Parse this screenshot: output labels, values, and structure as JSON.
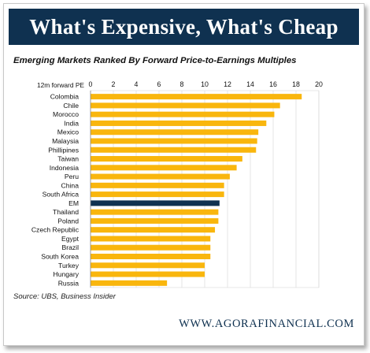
{
  "banner": {
    "title": "What's Expensive, What's Cheap"
  },
  "footer": {
    "site": "WWW.AGORAFINANCIAL.COM",
    "source": "Source: UBS, Business Insider"
  },
  "colors": {
    "banner": "#0f3150",
    "bar": "#f9b60d",
    "highlight_bar": "#0f3150"
  },
  "chart_data": {
    "type": "bar",
    "orientation": "horizontal",
    "title": "Emerging Markets Ranked By Forward Price-to-Earnings Multiples",
    "axis_label": "12m forward PE",
    "xlim": [
      0,
      20
    ],
    "xticks": [
      0,
      2,
      4,
      6,
      8,
      10,
      12,
      14,
      16,
      18,
      20
    ],
    "grid": true,
    "highlight": "EM",
    "categories": [
      "Colombia",
      "Chile",
      "Morocco",
      "India",
      "Mexico",
      "Malaysia",
      "Phillipines",
      "Taiwan",
      "Indonesia",
      "Peru",
      "China",
      "South Africa",
      "EM",
      "Thailand",
      "Poland",
      "Czech Republic",
      "Egypt",
      "Brazil",
      "South Korea",
      "Turkey",
      "Hungary",
      "Russia"
    ],
    "values": [
      18.5,
      16.6,
      16.1,
      15.4,
      14.7,
      14.6,
      14.5,
      13.3,
      12.8,
      12.2,
      11.7,
      11.7,
      11.3,
      11.2,
      11.2,
      10.9,
      10.5,
      10.5,
      10.5,
      10.0,
      10.0,
      6.7
    ]
  }
}
